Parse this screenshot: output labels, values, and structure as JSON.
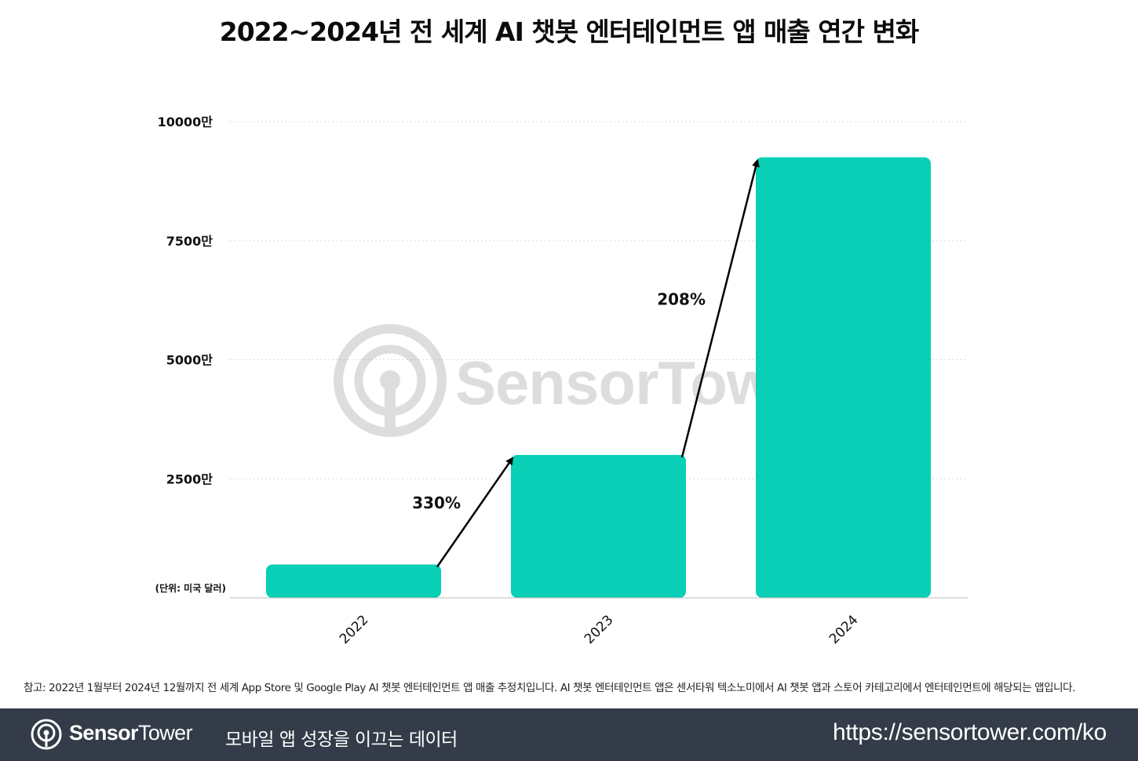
{
  "title": "2022~2024년 전 세계 AI 챗봇 엔터테인먼트 앱 매출 연간 변화",
  "unit_label": "(단위: 미국 달러)",
  "watermark": "SensorTower",
  "footnote": "참고: 2022년 1월부터 2024년 12월까지 전 세계 App Store 및 Google Play AI 챗봇 엔터테인먼트 앱 매출 추정치입니다. AI 챗봇 엔터테인먼트 앱은 센서타워 텍소노미에서 AI 챗봇 앱과 스토어 카테고리에서 엔터테인먼트에 해당되는 앱입니다.",
  "footer": {
    "brand_bold": "Sensor",
    "brand_light": "Tower",
    "tagline": "모바일 앱 성장을 이끄는 데이터",
    "url": "https://sensortower.com/ko"
  },
  "colors": {
    "bar": "#08cfb5",
    "footer_bg": "#333c48",
    "arrow": "#000000",
    "gridline": "#d9d9d9"
  },
  "chart_data": {
    "type": "bar",
    "title": "2022~2024년 전 세계 AI 챗봇 엔터테인먼트 앱 매출 연간 변화",
    "xlabel": "",
    "ylabel": "",
    "categories": [
      "2022",
      "2023",
      "2024"
    ],
    "values": [
      7000000,
      30000000,
      92500000
    ],
    "ylim": [
      0,
      100000000
    ],
    "yticks": [
      {
        "value": 25000000,
        "label": "2500만"
      },
      {
        "value": 50000000,
        "label": "5000만"
      },
      {
        "value": 75000000,
        "label": "7500만"
      },
      {
        "value": 100000000,
        "label": "10000만"
      }
    ],
    "annotations": [
      {
        "from": "2022",
        "to": "2023",
        "label": "330%"
      },
      {
        "from": "2023",
        "to": "2024",
        "label": "208%"
      }
    ],
    "grid": true,
    "legend": "none"
  }
}
